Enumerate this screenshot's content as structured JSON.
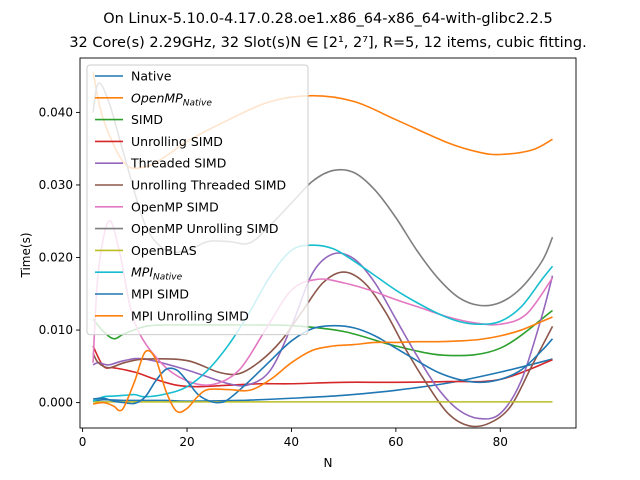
{
  "chart_data": {
    "type": "line",
    "title_line1": "On Linux-5.10.0-4.17.0.28.oe1.x86_64-x86_64-with-glibc2.2.5",
    "title_line2": "32 Core(s) 2.29GHz, 32 Slot(s)N ∈ [2¹, 2⁷], R=5, 12 items, cubic fitting.",
    "xlabel": "N",
    "ylabel": "Time(s)",
    "xlim": [
      -0.5,
      94.5
    ],
    "ylim": [
      -0.0035,
      0.0475
    ],
    "xticks": [
      0,
      20,
      40,
      60,
      80
    ],
    "yticks": [
      0.0,
      0.01,
      0.02,
      0.03,
      0.04
    ],
    "ytick_labels": [
      "0.000",
      "0.010",
      "0.020",
      "0.030",
      "0.040"
    ],
    "legend_position": "upper-left",
    "grid": false,
    "series": [
      {
        "name": "Native",
        "color": "#1f77b4",
        "x": [
          2,
          4,
          8,
          12,
          16,
          20,
          30,
          40,
          50,
          60,
          70,
          80,
          90
        ],
        "y": [
          0.0002,
          0.0004,
          0.0003,
          0.0003,
          0.0003,
          0.0002,
          0.0003,
          0.0006,
          0.001,
          0.0017,
          0.0027,
          0.0042,
          0.006
        ]
      },
      {
        "name": "OpenMP",
        "name_sub": "Native",
        "italic": true,
        "color": "#ff7f0e",
        "x": [
          2,
          4,
          8,
          12,
          16,
          20,
          28,
          36,
          44,
          52,
          60,
          70,
          76,
          80,
          86,
          90
        ],
        "y": [
          0.0455,
          0.039,
          0.033,
          0.0325,
          0.034,
          0.036,
          0.039,
          0.0415,
          0.0423,
          0.0415,
          0.039,
          0.0358,
          0.0345,
          0.0342,
          0.0348,
          0.0363
        ]
      },
      {
        "name": "SIMD",
        "color": "#2ca02c",
        "x": [
          2,
          4,
          6,
          8,
          12,
          16,
          20,
          30,
          40,
          50,
          60,
          70,
          80,
          90
        ],
        "y": [
          0.0115,
          0.0098,
          0.0088,
          0.0095,
          0.0105,
          0.0107,
          0.0107,
          0.0107,
          0.0106,
          0.0098,
          0.0078,
          0.0065,
          0.0075,
          0.0127
        ]
      },
      {
        "name": "Unrolling SIMD",
        "color": "#d62728",
        "x": [
          2,
          4,
          6,
          10,
          14,
          18,
          22,
          28,
          34,
          40,
          50,
          60,
          70,
          80,
          90
        ],
        "y": [
          0.0078,
          0.005,
          0.0048,
          0.0042,
          0.0032,
          0.0024,
          0.0022,
          0.0024,
          0.0026,
          0.0026,
          0.0028,
          0.0028,
          0.0029,
          0.0032,
          0.0059
        ]
      },
      {
        "name": "Threaded SIMD",
        "color": "#9467bd",
        "x": [
          2,
          3,
          5,
          8,
          12,
          20,
          28,
          32,
          36,
          40,
          44,
          48,
          52,
          56,
          60,
          64,
          68,
          72,
          76,
          80,
          84,
          88,
          90
        ],
        "y": [
          0.0052,
          0.0055,
          0.0052,
          0.0058,
          0.006,
          0.0045,
          0.0026,
          0.0025,
          0.0045,
          0.0105,
          0.0178,
          0.0205,
          0.0198,
          0.0165,
          0.0115,
          0.0065,
          0.002,
          -0.001,
          -0.0022,
          -0.0015,
          0.003,
          0.012,
          0.0175
        ]
      },
      {
        "name": "Unrolling Threaded SIMD",
        "color": "#8c564b",
        "x": [
          2,
          3,
          5,
          8,
          12,
          20,
          26,
          30,
          34,
          38,
          42,
          46,
          50,
          54,
          58,
          62,
          66,
          70,
          74,
          78,
          82,
          86,
          90
        ],
        "y": [
          0.0068,
          0.0055,
          0.0048,
          0.0055,
          0.006,
          0.0058,
          0.0042,
          0.004,
          0.0057,
          0.0085,
          0.0125,
          0.0165,
          0.018,
          0.0165,
          0.0125,
          0.0072,
          0.0025,
          -0.0015,
          -0.0032,
          -0.0028,
          -0.0005,
          0.005,
          0.0105
        ]
      },
      {
        "name": "OpenMP SIMD",
        "color": "#e377c2",
        "x": [
          2,
          3,
          5,
          7,
          10,
          15,
          20,
          25,
          30,
          35,
          40,
          45,
          50,
          55,
          60,
          65,
          70,
          75,
          80,
          85,
          90
        ],
        "y": [
          0.0055,
          0.018,
          0.025,
          0.021,
          0.011,
          0.0055,
          0.003,
          0.0025,
          0.0045,
          0.01,
          0.0155,
          0.017,
          0.0165,
          0.0155,
          0.0142,
          0.013,
          0.0118,
          0.011,
          0.0108,
          0.0122,
          0.0172
        ]
      },
      {
        "name": "OpenMP Unrolling SIMD",
        "color": "#7f7f7f",
        "x": [
          2,
          3,
          5,
          8,
          12,
          16,
          20,
          24,
          28,
          32,
          36,
          40,
          44,
          48,
          52,
          56,
          60,
          64,
          68,
          72,
          76,
          80,
          84,
          88,
          90
        ],
        "y": [
          0.04,
          0.044,
          0.0415,
          0.034,
          0.0245,
          0.021,
          0.021,
          0.0222,
          0.0222,
          0.022,
          0.0245,
          0.0275,
          0.0305,
          0.032,
          0.0317,
          0.0293,
          0.0255,
          0.021,
          0.0172,
          0.0145,
          0.0134,
          0.0138,
          0.0158,
          0.0195,
          0.0228
        ]
      },
      {
        "name": "OpenBLAS",
        "color": "#bcbd22",
        "x": [
          2,
          30,
          60,
          90
        ],
        "y": [
          0.0001,
          0.0001,
          0.0001,
          0.0001
        ]
      },
      {
        "name": "MPI",
        "name_sub": "Native",
        "italic": true,
        "color": "#17becf",
        "x": [
          2,
          4,
          6,
          8,
          10,
          12,
          16,
          20,
          24,
          28,
          32,
          36,
          40,
          44,
          48,
          52,
          56,
          60,
          64,
          68,
          72,
          76,
          80,
          84,
          88,
          90
        ],
        "y": [
          0.0002,
          0.0008,
          0.0009,
          0.001,
          0.0011,
          0.0008,
          0.0012,
          0.0022,
          0.0045,
          0.008,
          0.0125,
          0.0175,
          0.021,
          0.0217,
          0.0212,
          0.0195,
          0.0175,
          0.0155,
          0.0138,
          0.0123,
          0.0112,
          0.0108,
          0.0112,
          0.0132,
          0.017,
          0.0188
        ]
      },
      {
        "name": "MPI SIMD",
        "color": "#1f77b4",
        "x": [
          2,
          4,
          6,
          8,
          10,
          12,
          14,
          16,
          18,
          20,
          22,
          24,
          26,
          28,
          32,
          36,
          40,
          44,
          48,
          52,
          56,
          60,
          64,
          68,
          72,
          76,
          80,
          84,
          88,
          90
        ],
        "y": [
          0.0005,
          0.0006,
          0.0002,
          0.0,
          -0.0001,
          0.0008,
          0.003,
          0.0046,
          0.0045,
          0.003,
          0.0012,
          0.0003,
          0.0,
          0.0005,
          0.003,
          0.0058,
          0.0085,
          0.0102,
          0.0106,
          0.0103,
          0.0092,
          0.0075,
          0.0058,
          0.0042,
          0.0032,
          0.0028,
          0.0032,
          0.0045,
          0.0072,
          0.0088
        ]
      },
      {
        "name": "MPI Unrolling SIMD",
        "color": "#ff7f0e",
        "x": [
          2,
          4,
          6,
          7,
          8,
          10,
          12,
          14,
          16,
          18,
          20,
          22,
          24,
          28,
          32,
          36,
          40,
          44,
          48,
          52,
          56,
          60,
          64,
          68,
          72,
          76,
          80,
          84,
          88,
          90
        ],
        "y": [
          -0.0002,
          0.0,
          -0.0005,
          -0.0011,
          -0.0005,
          0.003,
          0.007,
          0.006,
          0.0015,
          -0.0012,
          -0.0008,
          0.0008,
          0.0018,
          0.0018,
          0.0017,
          0.0032,
          0.0055,
          0.0072,
          0.0078,
          0.008,
          0.0083,
          0.0083,
          0.0084,
          0.0084,
          0.0085,
          0.0087,
          0.0092,
          0.01,
          0.0112,
          0.0118
        ]
      }
    ]
  }
}
